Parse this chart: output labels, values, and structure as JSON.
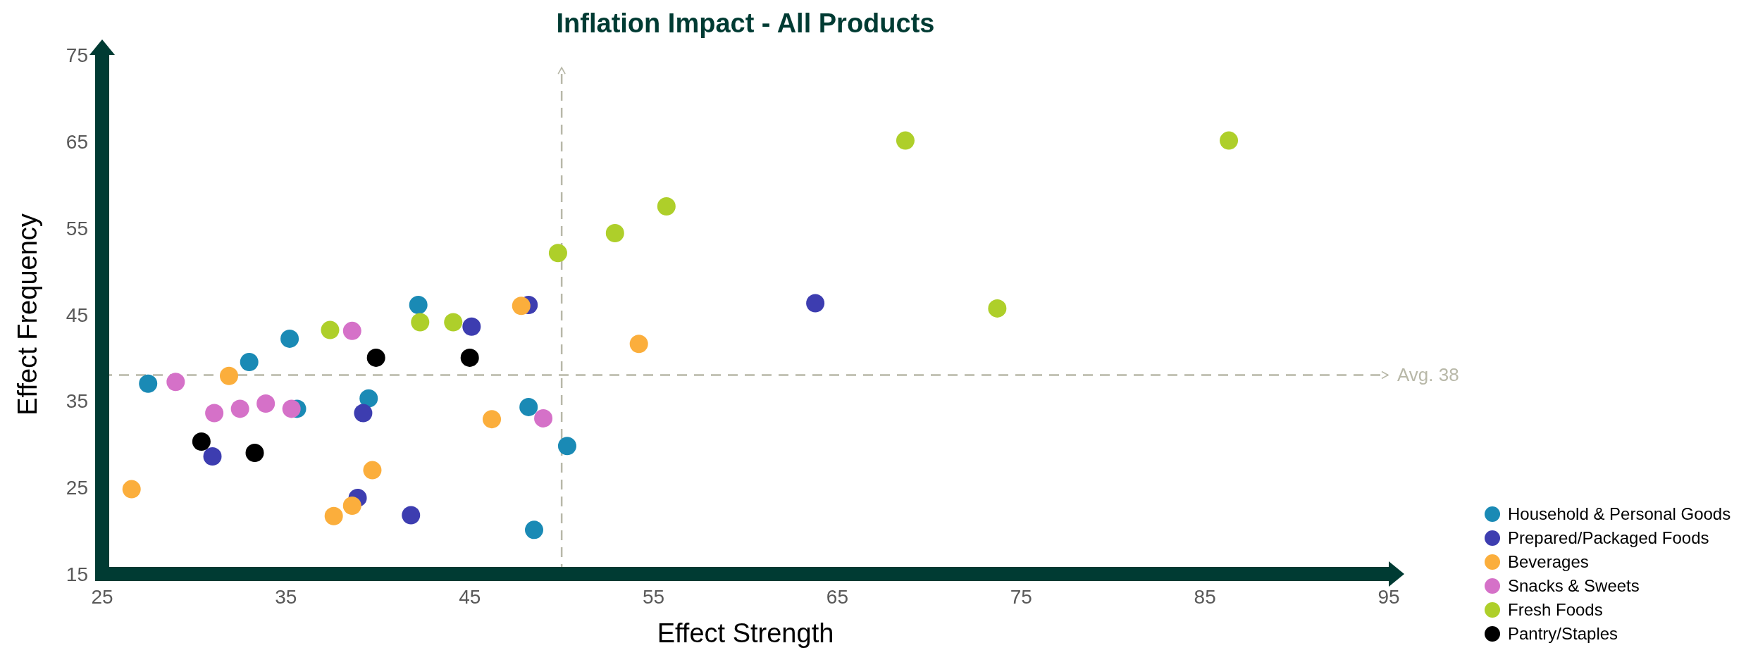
{
  "chart_data": {
    "type": "scatter",
    "title": "Inflation Impact - All Products",
    "xlabel": "Effect Strength",
    "ylabel": "Effect Frequency",
    "xlim": [
      25,
      95
    ],
    "xticks": [
      25,
      35,
      45,
      55,
      65,
      75,
      85,
      95
    ],
    "ylim": [
      15,
      75
    ],
    "yticks": [
      15,
      25,
      35,
      45,
      55,
      65,
      75
    ],
    "marker": "circle",
    "legend": "bottom right",
    "grid": false,
    "ref_lines": [
      {
        "axis": "y",
        "value": 38,
        "label": "Avg. 38",
        "color": "#b8b8a8",
        "line_style": "dashed"
      },
      {
        "axis": "x",
        "value": 50,
        "label": null,
        "color": "#b8b8a8",
        "line_style": "dashed"
      }
    ],
    "series": [
      {
        "name": "Household & Personal Goods",
        "color": "#1a8ab5",
        "x": [
          27.5,
          33.0,
          35.2,
          35.6,
          39.5,
          42.2,
          48.2,
          50.3,
          48.5
        ],
        "values": [
          37.0,
          39.5,
          42.2,
          34.1,
          35.3,
          46.1,
          34.3,
          29.8,
          20.1
        ]
      },
      {
        "name": "Prepared/Packaged Foods",
        "color": "#3d3db0",
        "x": [
          31.0,
          39.2,
          38.9,
          41.8,
          45.1,
          48.2,
          63.8
        ],
        "values": [
          28.6,
          33.6,
          23.8,
          21.8,
          43.6,
          46.1,
          46.3
        ]
      },
      {
        "name": "Beverages",
        "color": "#fbae3c",
        "x": [
          26.6,
          31.9,
          39.7,
          38.6,
          37.6,
          46.2,
          47.8,
          54.2
        ],
        "values": [
          24.8,
          37.9,
          27.0,
          22.9,
          21.7,
          32.9,
          46.0,
          41.6
        ]
      },
      {
        "name": "Snacks & Sweets",
        "color": "#d571c8",
        "x": [
          29.0,
          31.1,
          32.5,
          33.9,
          35.3,
          38.6,
          49.0
        ],
        "values": [
          37.2,
          33.6,
          34.1,
          34.7,
          34.1,
          43.1,
          33.0
        ]
      },
      {
        "name": "Fresh Foods",
        "color": "#aecf2a",
        "x": [
          37.4,
          42.3,
          44.1,
          49.8,
          52.9,
          55.7,
          68.7,
          86.3,
          73.7
        ],
        "values": [
          43.2,
          44.1,
          44.1,
          52.1,
          54.4,
          57.5,
          65.1,
          65.1,
          45.7
        ]
      },
      {
        "name": "Pantry/Staples",
        "color": "#000000",
        "x": [
          30.4,
          33.3,
          39.9,
          45.0
        ],
        "values": [
          30.3,
          29.0,
          40.0,
          40.0
        ]
      }
    ]
  }
}
